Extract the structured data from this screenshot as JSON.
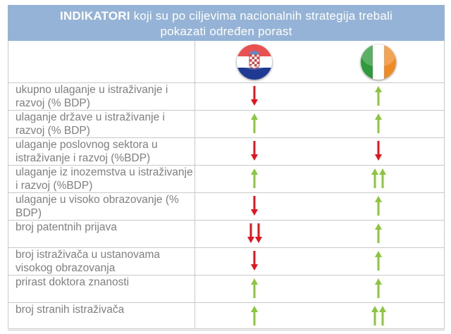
{
  "header": {
    "title_bold": "INDIKATORI",
    "title_line1_rest": " koji su po ciljevima nacionalnih  strategija trebali",
    "title_line2": "pokazati određen porast"
  },
  "countries": [
    {
      "flag_icon": "croatia-flag-icon",
      "colors": [
        "#e52a2a",
        "#ffffff",
        "#1f3a93"
      ]
    },
    {
      "flag_icon": "ireland-flag-icon",
      "colors": [
        "#2e9a3b",
        "#ffffff",
        "#f08a24"
      ]
    }
  ],
  "colors": {
    "up": "#8cc63e",
    "down": "#e3141c",
    "header_bg": "#95b3d7",
    "text": "#7f7f7f"
  },
  "rows": [
    {
      "label": "ukupno ulaganje u istraživanje i razvoj (% BDP)",
      "croatia": "down",
      "ireland": "up"
    },
    {
      "label": "ulaganje države u istraživanje i razvoj (% BDP)",
      "croatia": "up",
      "ireland": "up"
    },
    {
      "label": "ulaganje poslovnog sektora u istraživanje i razvoj (%BDP)",
      "croatia": "down",
      "ireland": "down"
    },
    {
      "label": "ulaganje iz inozemstva u istraživanje i razvoj (%BDP)",
      "croatia": "up",
      "ireland": "up-up"
    },
    {
      "label": "ulaganje u visoko obrazovanje (% BDP)",
      "croatia": "down",
      "ireland": "up"
    },
    {
      "label": "broj patentnih prijava",
      "croatia": "down-down",
      "ireland": "up"
    },
    {
      "label": "broj istraživača u ustanovama visokog obrazovanja",
      "croatia": "down",
      "ireland": "up"
    },
    {
      "label": "prirast doktora znanosti",
      "croatia": "up",
      "ireland": "up"
    },
    {
      "label": "broj stranih istraživača",
      "croatia": "up",
      "ireland": "up-up"
    }
  ]
}
